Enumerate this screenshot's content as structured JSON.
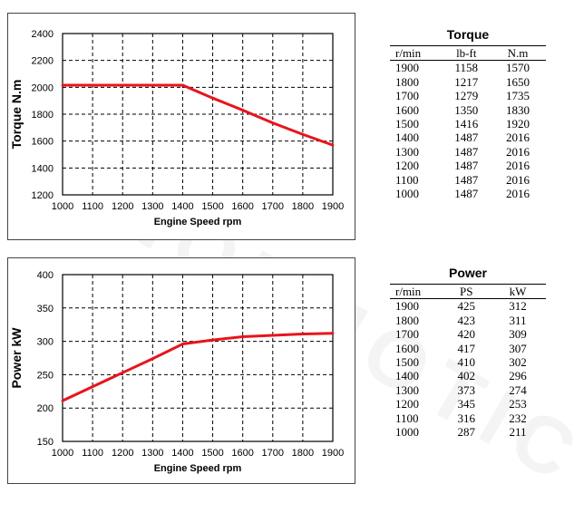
{
  "watermark": "SINOEMOTIC",
  "chart_data": [
    {
      "type": "line",
      "xlabel": "Engine Speed rpm",
      "ylabel": "Torque  N.m",
      "x": [
        1000,
        1100,
        1200,
        1300,
        1400,
        1500,
        1600,
        1700,
        1800,
        1900
      ],
      "xlim": [
        1000,
        1900
      ],
      "ylim": [
        1200,
        2400
      ],
      "xticks": [
        "1000",
        "1100",
        "1200",
        "1300",
        "1400",
        "1500",
        "1600",
        "1700",
        "1800",
        "1900"
      ],
      "yticks": [
        "1200",
        "1400",
        "1600",
        "1800",
        "2000",
        "2200",
        "2400"
      ],
      "grid": true,
      "series": [
        {
          "color": "#e8141c",
          "values": [
            2016,
            2016,
            2016,
            2016,
            2016,
            1920,
            1830,
            1735,
            1650,
            1570
          ]
        }
      ]
    },
    {
      "type": "line",
      "xlabel": "Engine Speed rpm",
      "ylabel": "Power  kW",
      "x": [
        1000,
        1100,
        1200,
        1300,
        1400,
        1500,
        1600,
        1700,
        1800,
        1900
      ],
      "xlim": [
        1000,
        1900
      ],
      "ylim": [
        150,
        400
      ],
      "xticks": [
        "1000",
        "1100",
        "1200",
        "1300",
        "1400",
        "1500",
        "1600",
        "1700",
        "1800",
        "1900"
      ],
      "yticks": [
        "150",
        "200",
        "250",
        "300",
        "350",
        "400"
      ],
      "grid": true,
      "series": [
        {
          "color": "#e8141c",
          "values": [
            211,
            232,
            253,
            274,
            296,
            302,
            307,
            309,
            311,
            312
          ]
        }
      ]
    }
  ],
  "tables": {
    "torque": {
      "title": "Torque",
      "headers": [
        "r/min",
        "lb-ft",
        "N.m"
      ],
      "rows": [
        [
          "1900",
          "1158",
          "1570"
        ],
        [
          "1800",
          "1217",
          "1650"
        ],
        [
          "1700",
          "1279",
          "1735"
        ],
        [
          "1600",
          "1350",
          "1830"
        ],
        [
          "1500",
          "1416",
          "1920"
        ],
        [
          "1400",
          "1487",
          "2016"
        ],
        [
          "1300",
          "1487",
          "2016"
        ],
        [
          "1200",
          "1487",
          "2016"
        ],
        [
          "1100",
          "1487",
          "2016"
        ],
        [
          "1000",
          "1487",
          "2016"
        ]
      ]
    },
    "power": {
      "title": "Power",
      "headers": [
        "r/min",
        "PS",
        "kW"
      ],
      "rows": [
        [
          "1900",
          "425",
          "312"
        ],
        [
          "1800",
          "423",
          "311"
        ],
        [
          "1700",
          "420",
          "309"
        ],
        [
          "1600",
          "417",
          "307"
        ],
        [
          "1500",
          "410",
          "302"
        ],
        [
          "1400",
          "402",
          "296"
        ],
        [
          "1300",
          "373",
          "274"
        ],
        [
          "1200",
          "345",
          "253"
        ],
        [
          "1100",
          "316",
          "232"
        ],
        [
          "1000",
          "287",
          "211"
        ]
      ]
    }
  }
}
